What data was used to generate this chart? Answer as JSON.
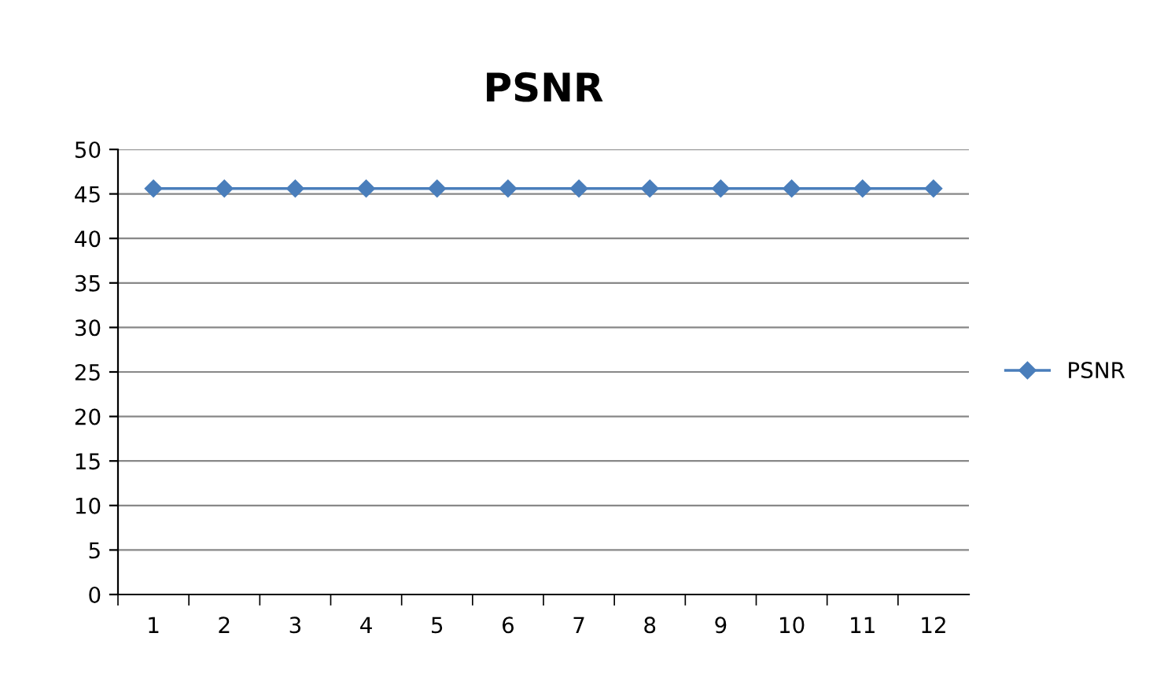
{
  "chart_data": {
    "type": "line",
    "title": "PSNR",
    "categories": [
      "1",
      "2",
      "3",
      "4",
      "5",
      "6",
      "7",
      "8",
      "9",
      "10",
      "11",
      "12"
    ],
    "series": [
      {
        "name": "PSNR",
        "color": "#4a7ebb",
        "values": [
          45.6,
          45.6,
          45.6,
          45.6,
          45.6,
          45.6,
          45.6,
          45.6,
          45.6,
          45.6,
          45.6,
          45.6
        ]
      }
    ],
    "ylim": [
      0,
      50
    ],
    "yticks": [
      0,
      5,
      10,
      15,
      20,
      25,
      30,
      35,
      40,
      45,
      50
    ],
    "grid": "y",
    "legend": "right",
    "marker": "diamond",
    "line_style": "solid"
  }
}
